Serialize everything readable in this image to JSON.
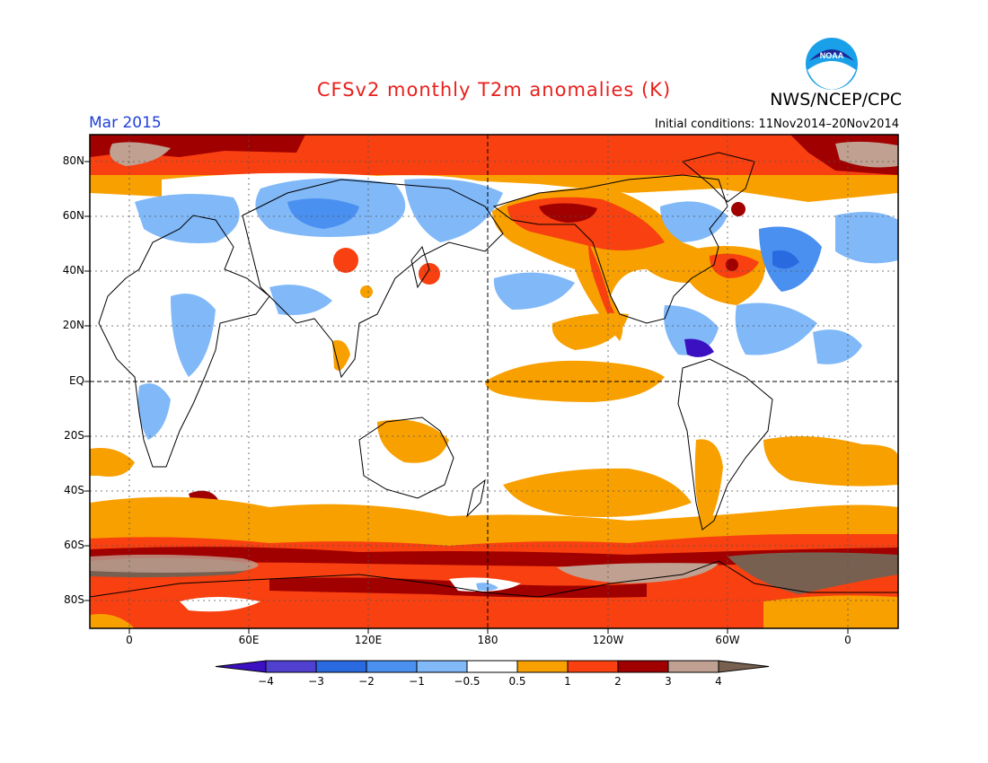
{
  "title": "CFSv2 monthly T2m anomalies (K)",
  "agency": "NWS/NCEP/CPC",
  "logo_text": "NOAA",
  "valid_month": "Mar 2015",
  "initial_conditions": "Initial conditions: 11Nov2014–20Nov2014",
  "map": {
    "latitude_labels": [
      "80N",
      "60N",
      "40N",
      "20N",
      "EQ",
      "20S",
      "40S",
      "60S",
      "80S"
    ],
    "longitude_labels": [
      "0",
      "60E",
      "120E",
      "180",
      "120W",
      "60W",
      "0"
    ]
  },
  "colorbar": {
    "labels": [
      "−4",
      "−3",
      "−2",
      "−1",
      "−0.5",
      "0.5",
      "1",
      "2",
      "3",
      "4"
    ],
    "colors": [
      "#3a10c0",
      "#5040d0",
      "#2a6ae0",
      "#4a90f0",
      "#80b8f8",
      "#ffffff",
      "#f8a000",
      "#f84010",
      "#a00000",
      "#c0a090",
      "#786050"
    ]
  }
}
